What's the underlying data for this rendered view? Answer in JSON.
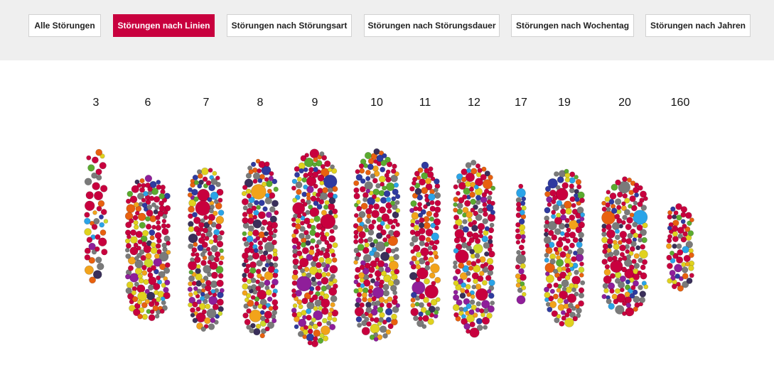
{
  "nav": {
    "tabs": [
      {
        "label": "Alle Störungen",
        "active": false
      },
      {
        "label": "Störungen nach Linien",
        "active": true
      },
      {
        "label": "Störungen nach Störungsart",
        "active": false
      },
      {
        "label": "Störungen nach Störungsdauer",
        "active": false
      },
      {
        "label": "Störungen nach Wochentag",
        "active": false
      },
      {
        "label": "Störungen nach Jahren",
        "active": false
      }
    ],
    "accent_color": "#c8003e"
  },
  "chart_data": {
    "type": "packed-bubble",
    "grouping": "line",
    "groups": [
      {
        "label": "3",
        "count": 45
      },
      {
        "label": "6",
        "count": 250
      },
      {
        "label": "7",
        "count": 260
      },
      {
        "label": "8",
        "count": 280
      },
      {
        "label": "9",
        "count": 360
      },
      {
        "label": "10",
        "count": 340
      },
      {
        "label": "11",
        "count": 165
      },
      {
        "label": "12",
        "count": 285
      },
      {
        "label": "17",
        "count": 40
      },
      {
        "label": "19",
        "count": 300
      },
      {
        "label": "20",
        "count": 275
      },
      {
        "label": "160",
        "count": 70
      }
    ],
    "palette": [
      "#c8003e",
      "#7a7a7a",
      "#e0d21e",
      "#e8610f",
      "#2f3aa0",
      "#2aa4e8",
      "#3a2f5a",
      "#5bab2f",
      "#8f1e9a",
      "#f2a31b",
      "#cddb2a"
    ]
  }
}
